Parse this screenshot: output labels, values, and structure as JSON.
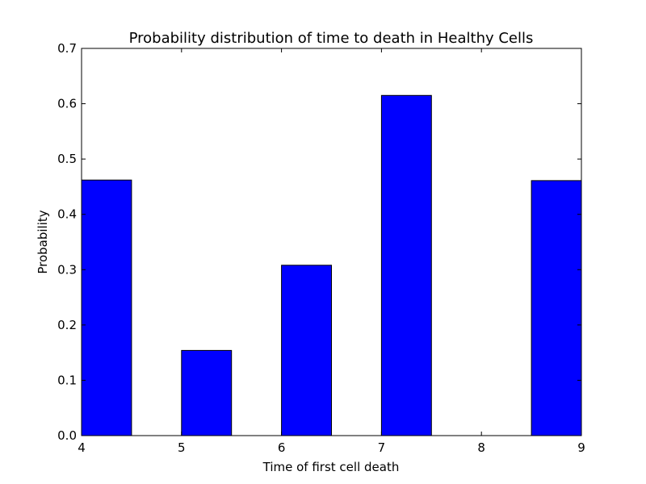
{
  "chart_data": {
    "type": "bar",
    "title": "Probability distribution of time to death in Healthy Cells",
    "xlabel": "Time of first cell death",
    "ylabel": "Probability",
    "xlim": [
      4,
      9
    ],
    "ylim": [
      0,
      0.7
    ],
    "xticks": [
      4,
      5,
      6,
      7,
      8,
      9
    ],
    "yticks": [
      0.0,
      0.1,
      0.2,
      0.3,
      0.4,
      0.5,
      0.6,
      0.7
    ],
    "xtick_labels": [
      "4",
      "5",
      "6",
      "7",
      "8",
      "9"
    ],
    "ytick_labels": [
      "0.0",
      "0.1",
      "0.2",
      "0.3",
      "0.4",
      "0.5",
      "0.6",
      "0.7"
    ],
    "bar_color": "#0000ff",
    "edge_color": "#000000",
    "bars": [
      {
        "x0": 4.0,
        "x1": 4.5,
        "value": 0.462
      },
      {
        "x0": 5.0,
        "x1": 5.5,
        "value": 0.154
      },
      {
        "x0": 6.0,
        "x1": 6.5,
        "value": 0.308
      },
      {
        "x0": 7.0,
        "x1": 7.5,
        "value": 0.615
      },
      {
        "x0": 8.5,
        "x1": 9.0,
        "value": 0.461
      }
    ],
    "grid": false,
    "legend": "none"
  }
}
